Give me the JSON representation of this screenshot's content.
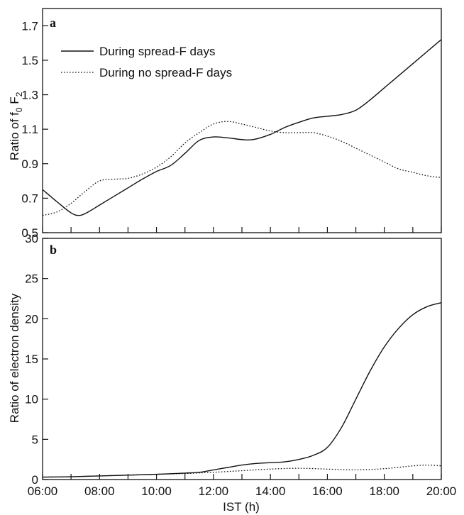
{
  "chart_data": [
    {
      "type": "line",
      "panel_label": "a",
      "ylabel_main": "Ratio of f",
      "ylabel_sub0": "0",
      "ylabel_mid": " F",
      "ylabel_sub2": "2",
      "ylim": [
        0.5,
        1.8
      ],
      "yticks": [
        0.5,
        0.7,
        0.9,
        1.1,
        1.3,
        1.5,
        1.7
      ],
      "ytick_labels": [
        "0.5",
        "0.7",
        "0.9",
        "1.1",
        "1.3",
        "1.5",
        "1.7"
      ],
      "xlim": [
        6,
        20
      ],
      "legend": {
        "position": "top-left",
        "entries": [
          "During spread-F days",
          "During no spread-F days"
        ]
      },
      "series": [
        {
          "name": "During spread-F days",
          "style": "solid",
          "x": [
            6.0,
            6.5,
            7.0,
            7.3,
            7.6,
            8.0,
            8.5,
            9.0,
            9.5,
            10.0,
            10.5,
            11.0,
            11.5,
            12.0,
            12.5,
            13.0,
            13.4,
            14.0,
            14.5,
            15.0,
            15.5,
            16.0,
            16.5,
            17.0,
            17.5,
            18.0,
            18.5,
            19.0,
            19.5,
            20.0
          ],
          "y": [
            0.75,
            0.68,
            0.615,
            0.6,
            0.62,
            0.66,
            0.71,
            0.76,
            0.81,
            0.855,
            0.89,
            0.96,
            1.035,
            1.055,
            1.05,
            1.04,
            1.04,
            1.07,
            1.11,
            1.14,
            1.165,
            1.175,
            1.185,
            1.21,
            1.27,
            1.34,
            1.41,
            1.48,
            1.55,
            1.62
          ]
        },
        {
          "name": "During no spread-F days",
          "style": "dotted",
          "x": [
            6.0,
            6.5,
            7.0,
            7.5,
            8.0,
            8.5,
            9.0,
            9.5,
            10.0,
            10.5,
            11.0,
            11.5,
            12.0,
            12.5,
            13.0,
            13.5,
            14.0,
            14.5,
            15.0,
            15.5,
            16.0,
            16.5,
            17.0,
            17.5,
            18.0,
            18.5,
            19.0,
            19.5,
            20.0
          ],
          "y": [
            0.6,
            0.62,
            0.67,
            0.74,
            0.8,
            0.81,
            0.815,
            0.84,
            0.88,
            0.94,
            1.02,
            1.08,
            1.13,
            1.145,
            1.13,
            1.11,
            1.09,
            1.08,
            1.08,
            1.08,
            1.06,
            1.03,
            0.99,
            0.95,
            0.91,
            0.87,
            0.85,
            0.83,
            0.82
          ]
        }
      ]
    },
    {
      "type": "line",
      "panel_label": "b",
      "ylabel": "Ratio of electron density",
      "xlabel": "IST (h)",
      "ylim": [
        0,
        30
      ],
      "yticks": [
        0,
        5,
        10,
        15,
        20,
        25,
        30
      ],
      "ytick_labels": [
        "0",
        "5",
        "10",
        "15",
        "20",
        "25",
        "30"
      ],
      "xlim": [
        6,
        20
      ],
      "xticks": [
        6,
        8,
        10,
        12,
        14,
        16,
        18,
        20
      ],
      "xtick_labels": [
        "06:00",
        "08:00",
        "10:00",
        "12:00",
        "14:00",
        "16:00",
        "18:00",
        "20:00"
      ],
      "series": [
        {
          "name": "During spread-F days",
          "style": "solid",
          "x": [
            6.0,
            7.0,
            8.0,
            9.0,
            10.0,
            11.0,
            11.5,
            12.0,
            12.5,
            13.0,
            13.5,
            14.0,
            14.5,
            15.0,
            15.5,
            16.0,
            16.5,
            17.0,
            17.5,
            18.0,
            18.5,
            19.0,
            19.5,
            20.0
          ],
          "y": [
            0.3,
            0.35,
            0.45,
            0.55,
            0.65,
            0.8,
            0.9,
            1.2,
            1.5,
            1.8,
            2.0,
            2.1,
            2.2,
            2.5,
            3.0,
            4.0,
            6.5,
            10.0,
            13.5,
            16.5,
            18.8,
            20.5,
            21.5,
            22.0
          ]
        },
        {
          "name": "During no spread-F days",
          "style": "dotted",
          "x": [
            6.0,
            7.0,
            8.0,
            9.0,
            10.0,
            11.0,
            12.0,
            13.0,
            14.0,
            15.0,
            16.0,
            17.0,
            18.0,
            19.0,
            19.5,
            20.0
          ],
          "y": [
            0.3,
            0.35,
            0.45,
            0.55,
            0.65,
            0.75,
            0.9,
            1.1,
            1.3,
            1.4,
            1.3,
            1.2,
            1.35,
            1.7,
            1.8,
            1.7
          ]
        }
      ]
    }
  ]
}
